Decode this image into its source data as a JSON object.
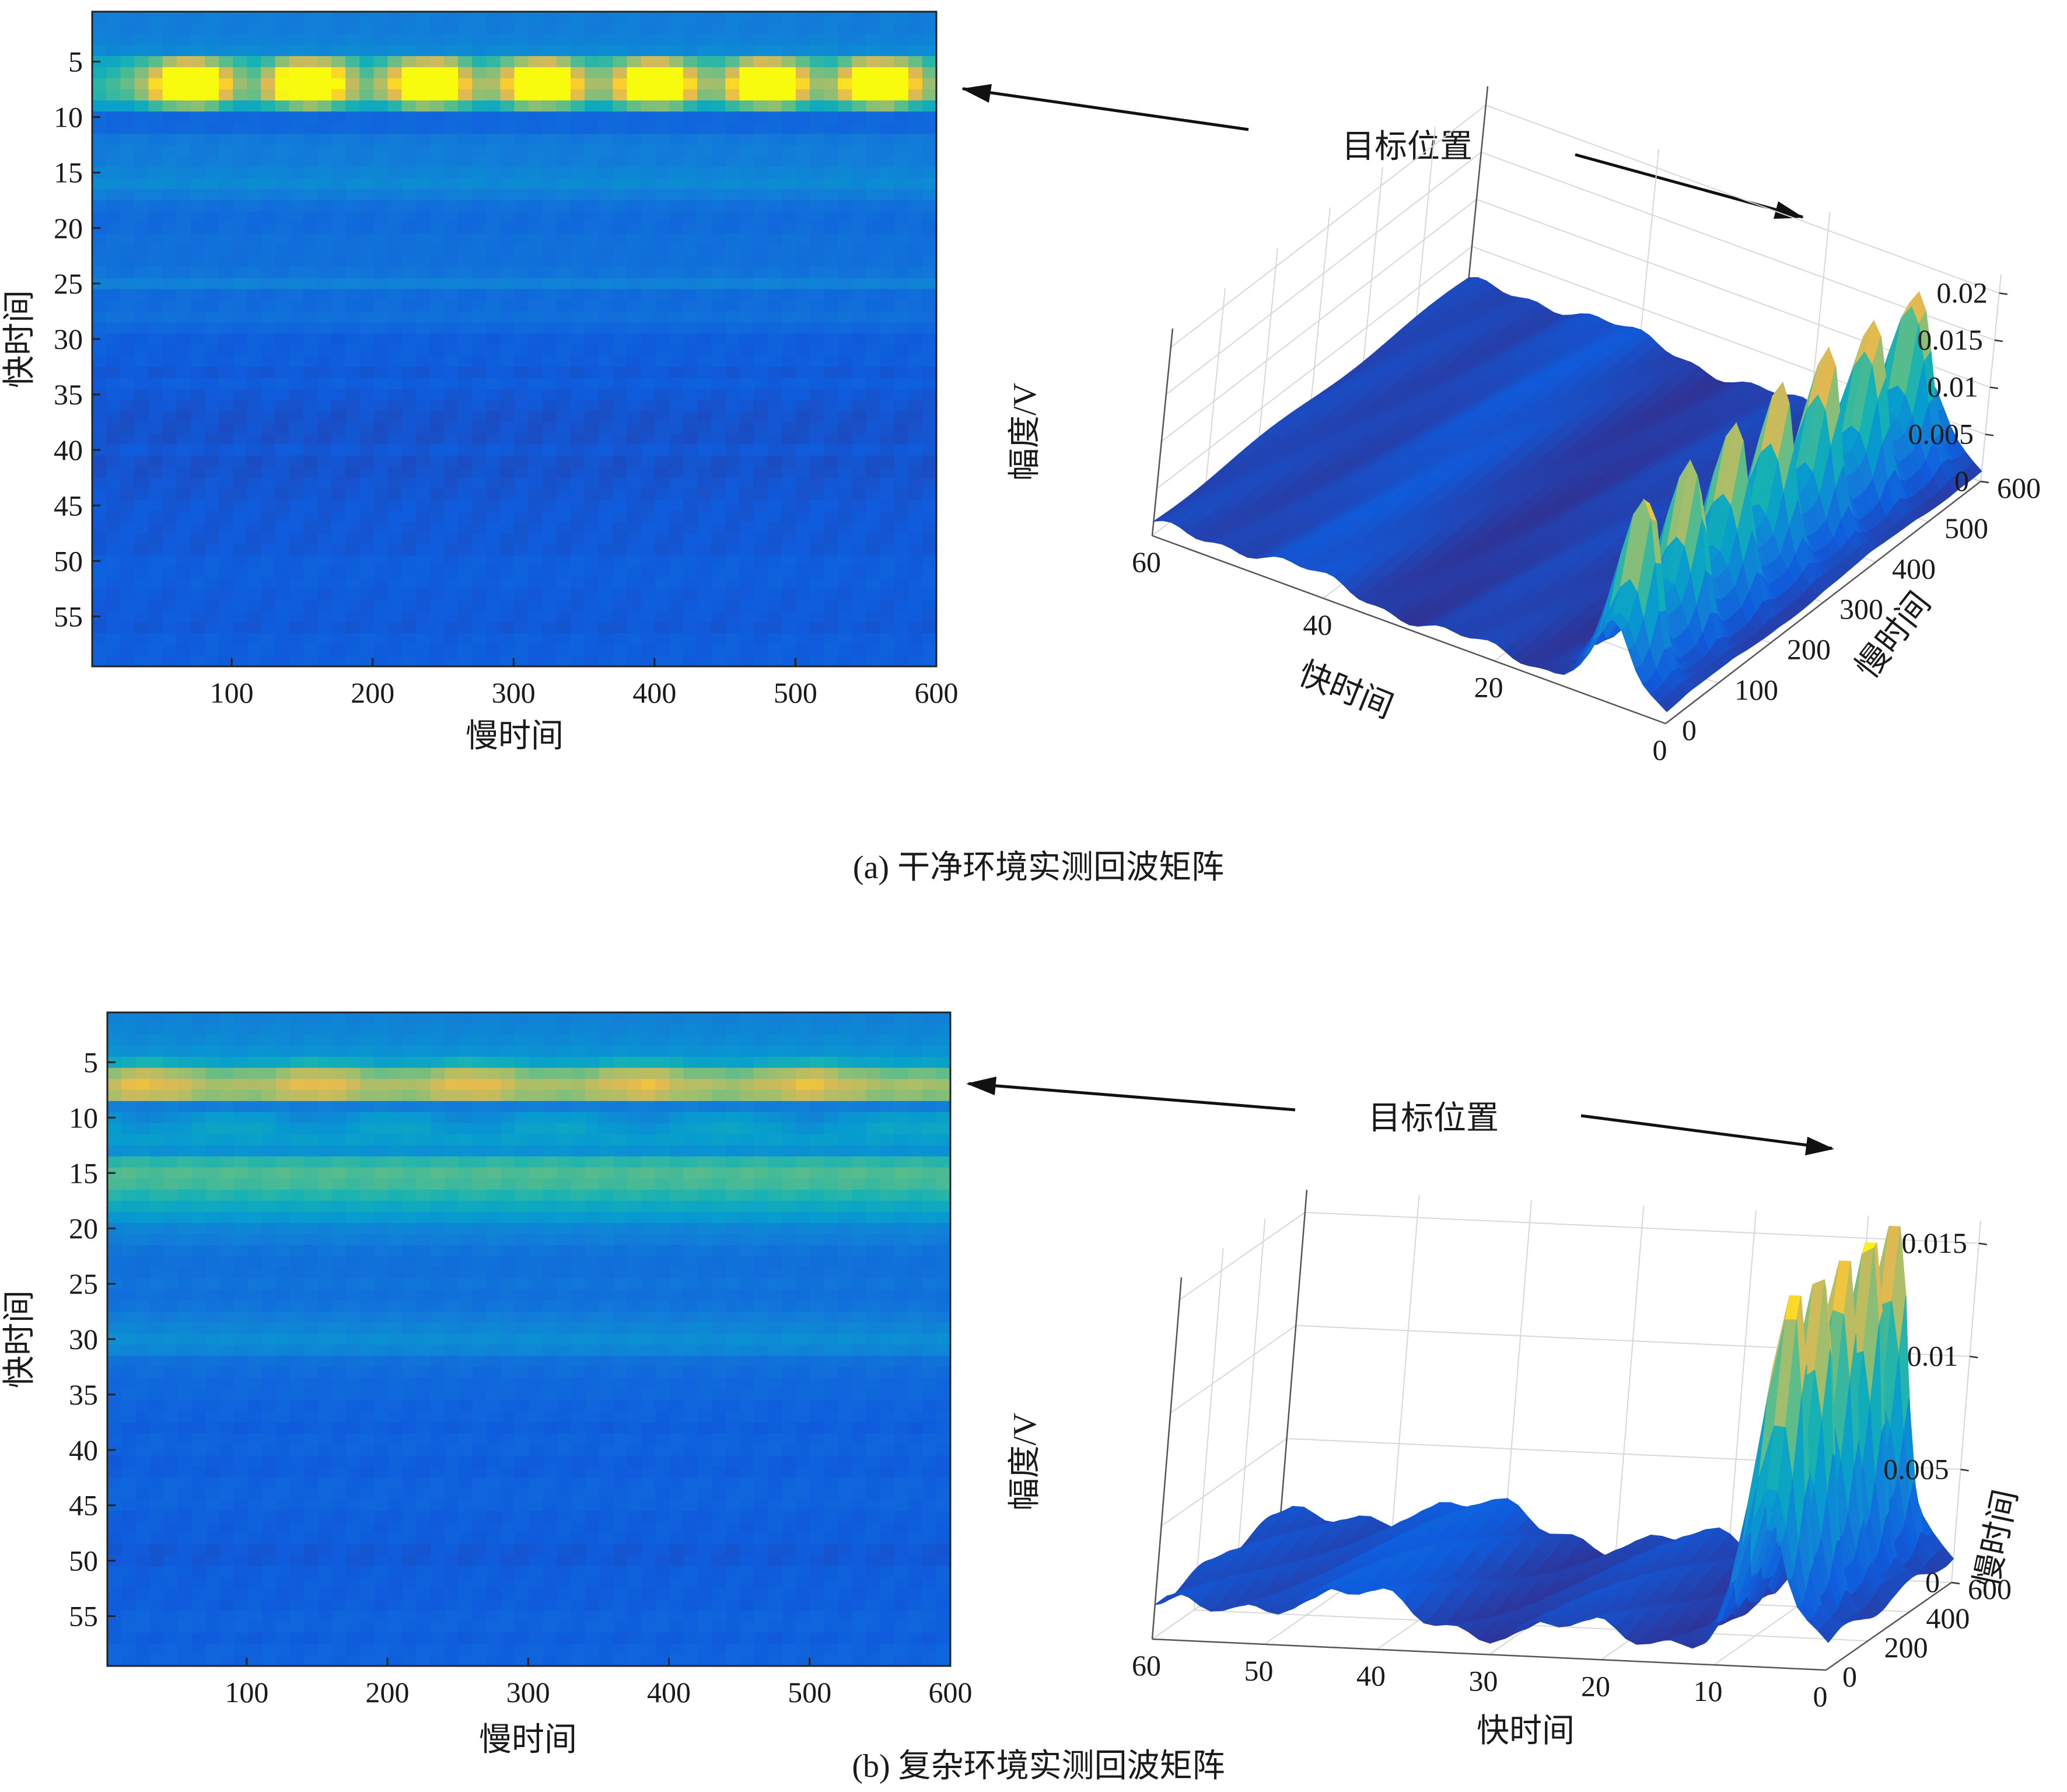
{
  "panels": [
    {
      "caption": "(a) 干净环境实测回波矩阵",
      "annotation": "目标位置",
      "chart_data": [
        {
          "type": "heatmap",
          "xlabel": "慢时间",
          "ylabel": "快时间",
          "xlim": [
            1,
            600
          ],
          "ylim": [
            1,
            59
          ],
          "y_reversed": true,
          "x_ticks": [
            100,
            200,
            300,
            400,
            500,
            600
          ],
          "y_ticks": [
            5,
            10,
            15,
            20,
            25,
            30,
            35,
            40,
            45,
            50,
            55
          ],
          "colormap": "parula",
          "rows": 59,
          "cols": 60,
          "target_rows": [
            5,
            9
          ],
          "peak_slow_times": [
            70,
            155,
            240,
            320,
            400,
            480,
            560
          ],
          "row_levels": [
            0.3,
            0.3,
            0.32,
            0.36,
            0.52,
            0.58,
            0.62,
            0.6,
            0.45,
            0.2,
            0.2,
            0.28,
            0.3,
            0.3,
            0.34,
            0.36,
            0.3,
            0.24,
            0.22,
            0.22,
            0.24,
            0.24,
            0.24,
            0.26,
            0.32,
            0.22,
            0.22,
            0.24,
            0.2,
            0.16,
            0.16,
            0.16,
            0.14,
            0.16,
            0.14,
            0.13,
            0.12,
            0.12,
            0.12,
            0.14,
            0.12,
            0.12,
            0.13,
            0.13,
            0.14,
            0.14,
            0.14,
            0.14,
            0.14,
            0.16,
            0.16,
            0.16,
            0.15,
            0.15,
            0.15,
            0.14,
            0.16,
            0.16,
            0.16
          ],
          "row_peak_gain": [
            0,
            0,
            0,
            0,
            0.35,
            0.58,
            0.65,
            0.58,
            0.32,
            0,
            0,
            0,
            0,
            0,
            0,
            0,
            0,
            0,
            0,
            0,
            0,
            0,
            0,
            0,
            0,
            0,
            0,
            0,
            0,
            0,
            0,
            0,
            0,
            0,
            0,
            0,
            0,
            0,
            0,
            0,
            0,
            0,
            0,
            0,
            0,
            0,
            0,
            0,
            0,
            0,
            0,
            0,
            0,
            0,
            0,
            0,
            0,
            0,
            0
          ]
        },
        {
          "type": "surface3d",
          "xlabel": "快时间",
          "ylabel": "慢时间",
          "zlabel": "幅度/V",
          "x_ticks": [
            0,
            20,
            40,
            60
          ],
          "y_ticks": [
            0,
            100,
            200,
            300,
            400,
            500,
            600
          ],
          "z_ticks": [
            "0",
            "0.005",
            "0.01",
            "0.015",
            "0.02"
          ],
          "xlim": [
            0,
            60
          ],
          "ylim": [
            0,
            600
          ],
          "zlim": [
            0,
            0.022
          ],
          "colormap": "parula",
          "peak_amplitude": 0.02,
          "target_fast_time": [
            5,
            9
          ],
          "peak_count": 7
        }
      ]
    },
    {
      "caption": "(b) 复杂环境实测回波矩阵",
      "annotation": "目标位置",
      "chart_data": [
        {
          "type": "heatmap",
          "xlabel": "慢时间",
          "ylabel": "快时间",
          "xlim": [
            1,
            600
          ],
          "ylim": [
            1,
            59
          ],
          "y_reversed": true,
          "x_ticks": [
            100,
            200,
            300,
            400,
            500,
            600
          ],
          "y_ticks": [
            5,
            10,
            15,
            20,
            25,
            30,
            35,
            40,
            45,
            50,
            55
          ],
          "colormap": "parula",
          "rows": 59,
          "cols": 60,
          "target_rows": [
            5,
            8
          ],
          "peak_slow_times": [
            30,
            150,
            260,
            380,
            500
          ],
          "row_levels": [
            0.32,
            0.34,
            0.36,
            0.4,
            0.48,
            0.72,
            0.8,
            0.76,
            0.3,
            0.46,
            0.5,
            0.46,
            0.4,
            0.62,
            0.68,
            0.66,
            0.6,
            0.52,
            0.44,
            0.34,
            0.3,
            0.26,
            0.24,
            0.24,
            0.26,
            0.24,
            0.26,
            0.3,
            0.34,
            0.38,
            0.34,
            0.24,
            0.22,
            0.2,
            0.2,
            0.18,
            0.18,
            0.16,
            0.18,
            0.18,
            0.16,
            0.16,
            0.18,
            0.18,
            0.18,
            0.16,
            0.16,
            0.16,
            0.14,
            0.14,
            0.16,
            0.16,
            0.16,
            0.16,
            0.18,
            0.18,
            0.16,
            0.18,
            0.18
          ],
          "row_peak_gain": [
            0,
            0,
            0,
            0,
            0.1,
            0.12,
            0.12,
            0.1,
            0,
            -0.12,
            -0.1,
            0,
            0,
            0,
            0,
            0,
            0,
            0,
            0,
            0,
            0,
            0,
            0,
            0,
            0,
            0,
            0,
            0,
            0,
            0,
            0,
            0,
            0,
            0,
            0,
            0,
            0,
            0,
            0,
            0,
            0,
            0,
            0,
            0,
            0,
            0,
            0,
            0,
            0,
            0,
            0,
            0,
            0,
            0,
            0,
            0,
            0,
            0,
            0
          ]
        },
        {
          "type": "surface3d",
          "xlabel": "快时间",
          "ylabel": "慢时间",
          "zlabel": "幅度/V",
          "x_ticks": [
            0,
            10,
            20,
            30,
            40,
            50,
            60
          ],
          "y_ticks": [
            0,
            200,
            400,
            600
          ],
          "z_ticks": [
            "0",
            "0.005",
            "0.01",
            "0.015"
          ],
          "xlim": [
            0,
            60
          ],
          "ylim": [
            0,
            600
          ],
          "zlim": [
            0,
            0.016
          ],
          "colormap": "parula",
          "peak_amplitude": 0.016,
          "target_fast_time": [
            5,
            8
          ],
          "peak_count": 5
        }
      ]
    }
  ]
}
